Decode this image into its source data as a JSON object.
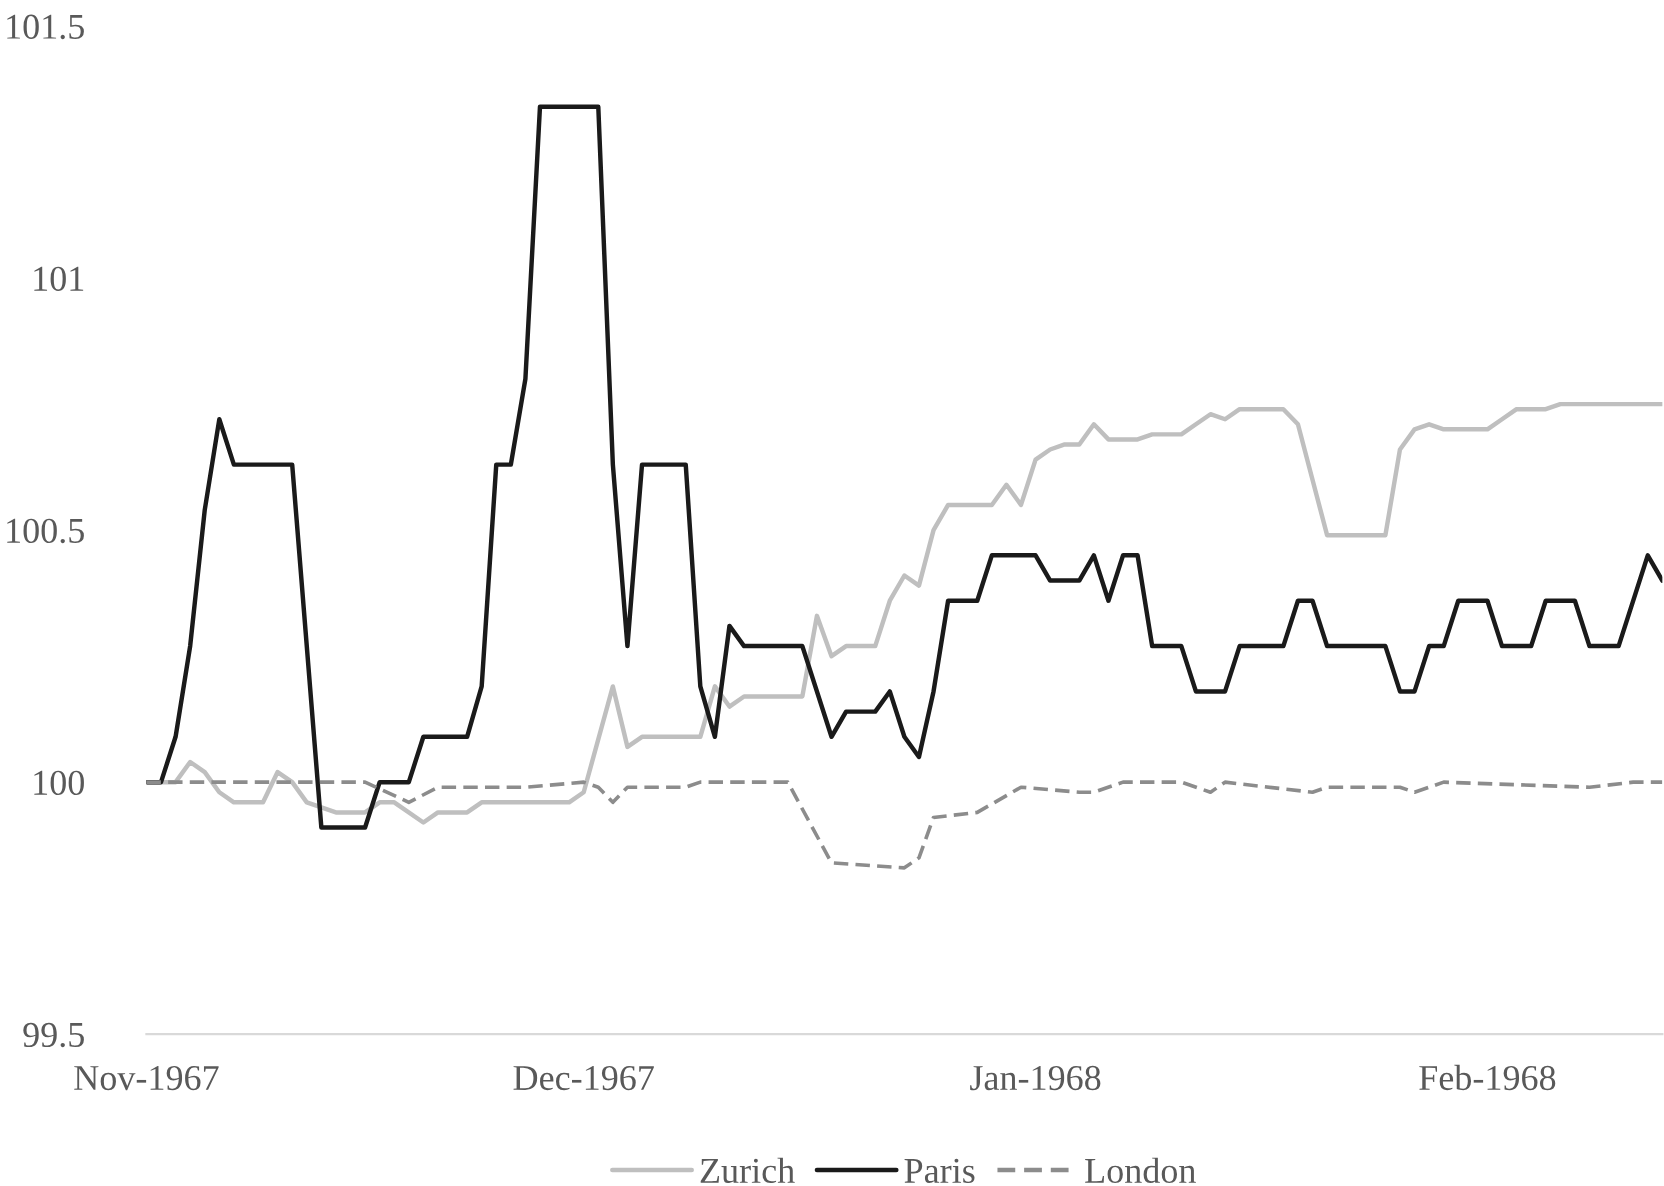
{
  "chart_data": {
    "type": "line",
    "ylim": [
      99.5,
      101.5
    ],
    "yticks": [
      99.5,
      100,
      100.5,
      101,
      101.5
    ],
    "xlim": [
      "1967-11-01",
      "1968-02-13"
    ],
    "xticks": [
      {
        "value": "1967-11-01",
        "label": "Nov-1967"
      },
      {
        "value": "1967-12-01",
        "label": "Dec-1967"
      },
      {
        "value": "1968-01-01",
        "label": "Jan-1968"
      },
      {
        "value": "1968-02-01",
        "label": "Feb-1968"
      }
    ],
    "grid": false,
    "legend": "bottom",
    "series": [
      {
        "name": "Zurich",
        "color": "#bfbfbf",
        "line_style": "solid",
        "x": [
          "1967-11-01",
          "1967-11-03",
          "1967-11-04",
          "1967-11-05",
          "1967-11-06",
          "1967-11-07",
          "1967-11-09",
          "1967-11-10",
          "1967-11-11",
          "1967-11-12",
          "1967-11-14",
          "1967-11-16",
          "1967-11-17",
          "1967-11-18",
          "1967-11-20",
          "1967-11-21",
          "1967-11-23",
          "1967-11-24",
          "1967-11-30",
          "1967-12-01",
          "1967-12-03",
          "1967-12-04",
          "1967-12-05",
          "1967-12-09",
          "1967-12-10",
          "1967-12-11",
          "1967-12-12",
          "1967-12-16",
          "1967-12-17",
          "1967-12-18",
          "1967-12-19",
          "1967-12-21",
          "1967-12-22",
          "1967-12-23",
          "1967-12-24",
          "1967-12-25",
          "1967-12-26",
          "1967-12-29",
          "1967-12-30",
          "1967-12-31",
          "1968-01-01",
          "1968-01-02",
          "1968-01-03",
          "1968-01-04",
          "1968-01-05",
          "1968-01-06",
          "1968-01-08",
          "1968-01-09",
          "1968-01-11",
          "1968-01-12",
          "1968-01-13",
          "1968-01-14",
          "1968-01-15",
          "1968-01-18",
          "1968-01-19",
          "1968-01-20",
          "1968-01-21",
          "1968-01-25",
          "1968-01-26",
          "1968-01-27",
          "1968-01-28",
          "1968-01-29",
          "1968-02-01",
          "1968-02-02",
          "1968-02-03",
          "1968-02-05",
          "1968-02-06",
          "1968-02-13"
        ],
        "values": [
          100,
          100,
          100.04,
          100.02,
          99.98,
          99.96,
          99.96,
          100.02,
          100.0,
          99.96,
          99.94,
          99.94,
          99.96,
          99.96,
          99.92,
          99.94,
          99.94,
          99.96,
          99.96,
          99.98,
          100.19,
          100.07,
          100.09,
          100.09,
          100.19,
          100.15,
          100.17,
          100.17,
          100.33,
          100.25,
          100.27,
          100.27,
          100.36,
          100.41,
          100.39,
          100.5,
          100.55,
          100.55,
          100.59,
          100.55,
          100.64,
          100.66,
          100.67,
          100.67,
          100.71,
          100.68,
          100.68,
          100.69,
          100.69,
          100.71,
          100.73,
          100.72,
          100.74,
          100.74,
          100.71,
          100.6,
          100.49,
          100.49,
          100.66,
          100.7,
          100.71,
          100.7,
          100.7,
          100.72,
          100.74,
          100.74,
          100.75,
          100.75
        ]
      },
      {
        "name": "Paris",
        "color": "#1a1a1a",
        "line_style": "solid",
        "x": [
          "1967-11-01",
          "1967-11-02",
          "1967-11-03",
          "1967-11-04",
          "1967-11-05",
          "1967-11-06",
          "1967-11-07",
          "1967-11-11",
          "1967-11-13",
          "1967-11-16",
          "1967-11-17",
          "1967-11-19",
          "1967-11-20",
          "1967-11-23",
          "1967-11-24",
          "1967-11-25",
          "1967-11-26",
          "1967-11-27",
          "1967-11-28",
          "1967-12-02",
          "1967-12-03",
          "1967-12-04",
          "1967-12-05",
          "1967-12-08",
          "1967-12-09",
          "1967-12-10",
          "1967-12-11",
          "1967-12-12",
          "1967-12-16",
          "1967-12-18",
          "1967-12-19",
          "1967-12-21",
          "1967-12-22",
          "1967-12-23",
          "1967-12-24",
          "1967-12-25",
          "1967-12-26",
          "1967-12-28",
          "1967-12-29",
          "1968-01-01",
          "1968-01-02",
          "1968-01-04",
          "1968-01-05",
          "1968-01-06",
          "1968-01-07",
          "1968-01-08",
          "1968-01-09",
          "1968-01-11",
          "1968-01-12",
          "1968-01-14",
          "1968-01-15",
          "1968-01-18",
          "1968-01-19",
          "1968-01-20",
          "1968-01-21",
          "1968-01-25",
          "1968-01-26",
          "1968-01-27",
          "1968-01-28",
          "1968-01-29",
          "1968-01-30",
          "1968-02-01",
          "1968-02-02",
          "1968-02-04",
          "1968-02-05",
          "1968-02-07",
          "1968-02-08",
          "1968-02-10",
          "1968-02-12",
          "1968-02-13"
        ],
        "values": [
          100,
          100,
          100.09,
          100.27,
          100.54,
          100.72,
          100.63,
          100.63,
          99.91,
          99.91,
          100,
          100,
          100.09,
          100.09,
          100.19,
          100.63,
          100.63,
          100.8,
          101.34,
          101.34,
          100.63,
          100.27,
          100.63,
          100.63,
          100.19,
          100.09,
          100.31,
          100.27,
          100.27,
          100.09,
          100.14,
          100.14,
          100.18,
          100.09,
          100.05,
          100.18,
          100.36,
          100.36,
          100.45,
          100.45,
          100.4,
          100.4,
          100.45,
          100.36,
          100.45,
          100.45,
          100.27,
          100.27,
          100.18,
          100.18,
          100.27,
          100.27,
          100.36,
          100.36,
          100.27,
          100.27,
          100.18,
          100.18,
          100.27,
          100.27,
          100.36,
          100.36,
          100.27,
          100.27,
          100.36,
          100.36,
          100.27,
          100.27,
          100.45,
          100.4
        ]
      },
      {
        "name": "London",
        "color": "#8c8c8c",
        "line_style": "dashed",
        "x": [
          "1967-11-01",
          "1967-11-16",
          "1967-11-19",
          "1967-11-21",
          "1967-11-27",
          "1967-12-01",
          "1967-12-02",
          "1967-12-03",
          "1967-12-04",
          "1967-12-08",
          "1967-12-09",
          "1967-12-15",
          "1967-12-18",
          "1967-12-23",
          "1967-12-24",
          "1967-12-25",
          "1967-12-28",
          "1967-12-31",
          "1968-01-04",
          "1968-01-05",
          "1968-01-07",
          "1968-01-11",
          "1968-01-13",
          "1968-01-14",
          "1968-01-20",
          "1968-01-21",
          "1968-01-26",
          "1968-01-27",
          "1968-01-29",
          "1968-02-08",
          "1968-02-11",
          "1968-02-13"
        ],
        "values": [
          100,
          100,
          99.96,
          99.99,
          99.99,
          100,
          99.99,
          99.96,
          99.99,
          99.99,
          100,
          100,
          99.84,
          99.83,
          99.85,
          99.93,
          99.94,
          99.99,
          99.98,
          99.98,
          100,
          100,
          99.98,
          100,
          99.98,
          99.99,
          99.99,
          99.98,
          100,
          99.99,
          100,
          100
        ]
      }
    ]
  }
}
